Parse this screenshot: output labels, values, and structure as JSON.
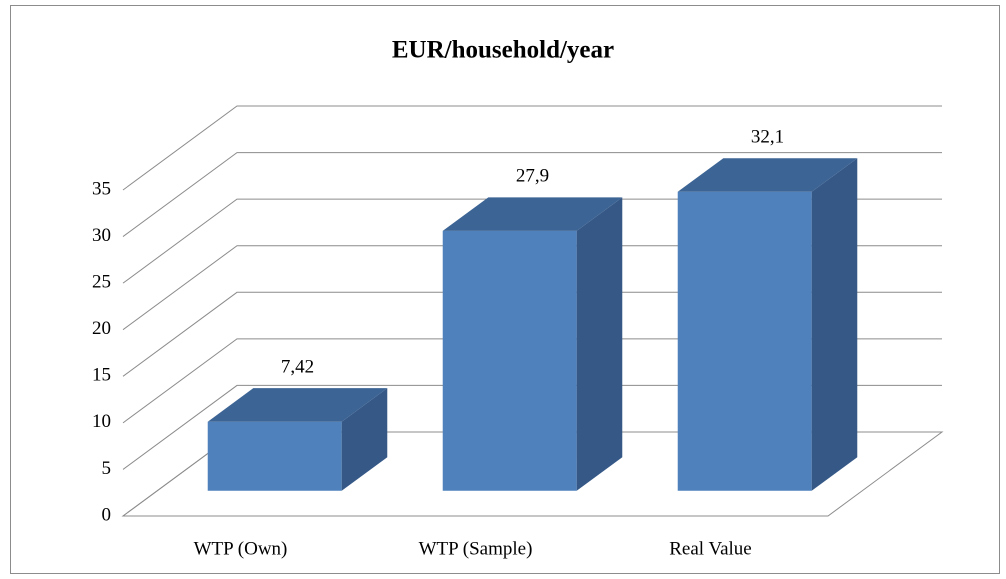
{
  "chart_data": {
    "type": "bar3d",
    "title": "EUR/household/year",
    "categories": [
      "WTP (Own)",
      "WTP (Sample)",
      "Real Value"
    ],
    "values": [
      7.42,
      27.9,
      32.1
    ],
    "value_labels": [
      "7,42",
      "27,9",
      "32,1"
    ],
    "color": "#4f81bd",
    "ylim": [
      0,
      35
    ],
    "yticks": [
      0,
      5,
      10,
      15,
      20,
      25,
      30,
      35
    ],
    "grid": true
  }
}
